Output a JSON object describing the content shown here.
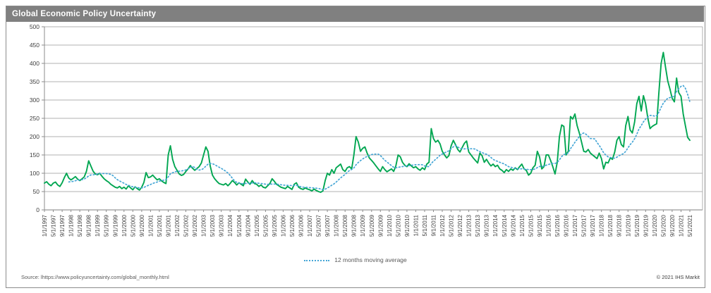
{
  "header": {
    "title": "Global Economic Policy Uncertainty",
    "bg_color": "#808080",
    "text_color": "#ffffff"
  },
  "legend": {
    "moving_average_label": "12 months moving average",
    "position": "bottom-center",
    "swatch_style": "dotted",
    "swatch_color": "#45a6d6"
  },
  "footer": {
    "source": "Source: lhttps://www.policyuncertainty.com/global_monthly.html",
    "copyright": "© 2021 IHS Markit"
  },
  "chart_data": {
    "type": "line",
    "title": "Global Economic Policy Uncertainty",
    "frequency": "monthly",
    "x_start": "1/1/1997",
    "x_end": "5/1/2021",
    "xlabel": "",
    "ylabel": "",
    "ylim": [
      0,
      500
    ],
    "y_ticks": [
      0,
      50,
      100,
      150,
      200,
      250,
      300,
      350,
      400,
      450,
      500
    ],
    "grid": "horizontal",
    "x_tick_interval_months": 4,
    "x_tick_labels": [
      "1/1/1997",
      "5/1/1997",
      "9/1/1997",
      "1/1/1998",
      "5/1/1998",
      "9/1/1998",
      "1/1/1999",
      "5/1/1999",
      "9/1/1999",
      "1/1/2000",
      "5/1/2000",
      "9/1/2000",
      "1/1/2001",
      "5/1/2001",
      "9/1/2001",
      "1/1/2002",
      "5/1/2002",
      "9/1/2002",
      "1/1/2003",
      "5/1/2003",
      "9/1/2003",
      "1/1/2004",
      "5/1/2004",
      "9/1/2004",
      "1/1/2005",
      "5/1/2005",
      "9/1/2005",
      "1/1/2006",
      "5/1/2006",
      "9/1/2006",
      "1/1/2007",
      "5/1/2007",
      "9/1/2007",
      "1/1/2008",
      "5/1/2008",
      "9/1/2008",
      "1/1/2009",
      "5/1/2009",
      "9/1/2009",
      "1/1/2010",
      "5/1/2010",
      "9/1/2010",
      "1/1/2011",
      "5/1/2011",
      "9/1/2011",
      "1/1/2012",
      "5/1/2012",
      "9/1/2012",
      "1/1/2013",
      "5/1/2013",
      "9/1/2013",
      "1/1/2014",
      "5/1/2014",
      "9/1/2014",
      "1/1/2015",
      "5/1/2015",
      "9/1/2015",
      "1/1/2016",
      "5/1/2016",
      "9/1/2016",
      "1/1/2017",
      "5/1/2017",
      "9/1/2017",
      "1/1/2018",
      "5/1/2018",
      "9/1/2018",
      "1/1/2019",
      "5/1/2019",
      "9/1/2019",
      "1/1/2020",
      "5/1/2020",
      "9/1/2020",
      "1/1/2021",
      "5/1/2021"
    ],
    "series": [
      {
        "name": "Global Economic Policy Uncertainty index",
        "color": "#00A651",
        "style": "solid",
        "values": [
          73,
          77,
          70,
          66,
          73,
          76,
          68,
          64,
          74,
          88,
          100,
          87,
          82,
          86,
          91,
          84,
          80,
          85,
          90,
          105,
          134,
          120,
          106,
          98,
          96,
          100,
          92,
          85,
          80,
          76,
          70,
          66,
          62,
          60,
          64,
          58,
          62,
          57,
          66,
          60,
          55,
          63,
          58,
          54,
          62,
          75,
          102,
          88,
          90,
          95,
          88,
          82,
          85,
          79,
          75,
          72,
          150,
          175,
          138,
          118,
          108,
          98,
          94,
          97,
          105,
          112,
          121,
          114,
          108,
          113,
          118,
          128,
          150,
          172,
          160,
          120,
          95,
          85,
          78,
          72,
          70,
          68,
          72,
          66,
          72,
          80,
          75,
          68,
          74,
          70,
          66,
          84,
          76,
          70,
          80,
          72,
          70,
          64,
          68,
          62,
          60,
          66,
          72,
          85,
          78,
          70,
          66,
          62,
          60,
          58,
          64,
          60,
          56,
          70,
          74,
          62,
          58,
          56,
          60,
          57,
          55,
          52,
          57,
          53,
          50,
          48,
          52,
          80,
          100,
          95,
          110,
          100,
          115,
          120,
          125,
          110,
          105,
          115,
          118,
          112,
          150,
          200,
          185,
          160,
          168,
          172,
          155,
          142,
          135,
          128,
          120,
          112,
          105,
          118,
          110,
          104,
          108,
          112,
          105,
          120,
          150,
          145,
          130,
          122,
          118,
          126,
          120,
          115,
          118,
          112,
          108,
          115,
          110,
          125,
          130,
          222,
          195,
          185,
          190,
          180,
          160,
          150,
          142,
          148,
          175,
          190,
          178,
          165,
          158,
          170,
          182,
          188,
          158,
          150,
          142,
          135,
          128,
          155,
          148,
          130,
          138,
          128,
          120,
          125,
          118,
          122,
          112,
          108,
          102,
          110,
          105,
          112,
          108,
          115,
          110,
          118,
          125,
          112,
          108,
          95,
          100,
          115,
          122,
          160,
          145,
          112,
          118,
          150,
          150,
          135,
          118,
          98,
          130,
          200,
          232,
          228,
          150,
          160,
          255,
          248,
          262,
          230,
          210,
          185,
          160,
          158,
          165,
          155,
          150,
          145,
          140,
          155,
          140,
          112,
          130,
          128,
          142,
          138,
          158,
          190,
          200,
          178,
          172,
          230,
          255,
          218,
          210,
          240,
          290,
          310,
          270,
          312,
          290,
          250,
          222,
          228,
          232,
          235,
          320,
          400,
          430,
          390,
          352,
          330,
          305,
          295,
          360,
          320,
          310,
          262,
          230,
          198,
          190
        ]
      },
      {
        "name": "12 months moving average",
        "color": "#45a6d6",
        "style": "dotted",
        "derived": "trailing 12-month mean of the index series"
      }
    ]
  }
}
